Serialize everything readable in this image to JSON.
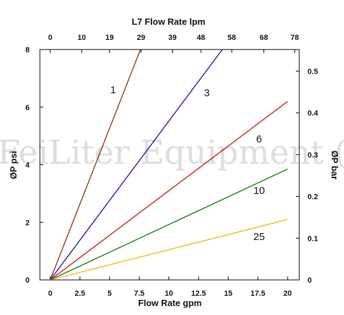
{
  "watermark": "FeiLiter Equipment (",
  "chart_data": {
    "type": "line",
    "title": "L7 Flow Rate lpm",
    "xlabel": "Flow Rate gpm",
    "ylabel": "ØP psi",
    "y2label": "ØP bar",
    "xlim": [
      0,
      21
    ],
    "ylim": [
      0,
      8
    ],
    "y2lim": [
      0,
      0.5516
    ],
    "x_ticks": [
      0,
      2.5,
      5,
      7.5,
      10,
      12.5,
      15,
      17.5,
      20
    ],
    "x_tick_labels": [
      "0",
      "2.5",
      "5",
      "7.5",
      "10",
      "12.5",
      "15",
      "17.5",
      "20"
    ],
    "y_ticks": [
      0,
      2,
      4,
      6,
      8
    ],
    "y_tick_labels": [
      "0",
      "2",
      "4",
      "6",
      "8"
    ],
    "top_ticks": [
      0,
      2.65,
      5.0,
      7.65,
      10.3,
      12.7,
      15.3,
      18.0,
      20.6
    ],
    "top_tick_labels": [
      "0",
      "10",
      "19",
      "29",
      "39",
      "48",
      "58",
      "68",
      "78"
    ],
    "right_ticks": [
      0,
      0.1,
      0.2,
      0.3,
      0.4,
      0.5
    ],
    "right_tick_labels": [
      "0",
      "0.1",
      "0.2",
      "0.3",
      "0.4",
      "0.5"
    ],
    "grid": false,
    "series": [
      {
        "name": "1",
        "color": "#8B3A1A",
        "x": [
          0,
          7.6
        ],
        "y": [
          0,
          8.0
        ],
        "label_at": [
          5.3,
          6.6
        ]
      },
      {
        "name": "3",
        "color": "#1A1AB0",
        "x": [
          0,
          14.5
        ],
        "y": [
          0,
          8.0
        ],
        "label_at": [
          13.2,
          6.5
        ]
      },
      {
        "name": "6",
        "color": "#CC1A1A",
        "x": [
          0,
          20.0
        ],
        "y": [
          0,
          6.2
        ],
        "label_at": [
          17.6,
          4.9
        ]
      },
      {
        "name": "10",
        "color": "#1A7A1A",
        "x": [
          0,
          20.0
        ],
        "y": [
          0,
          3.85
        ],
        "label_at": [
          17.6,
          3.1
        ]
      },
      {
        "name": "25",
        "color": "#E8C21A",
        "x": [
          0,
          20.0
        ],
        "y": [
          0,
          2.1
        ],
        "label_at": [
          17.6,
          1.5
        ]
      }
    ]
  }
}
